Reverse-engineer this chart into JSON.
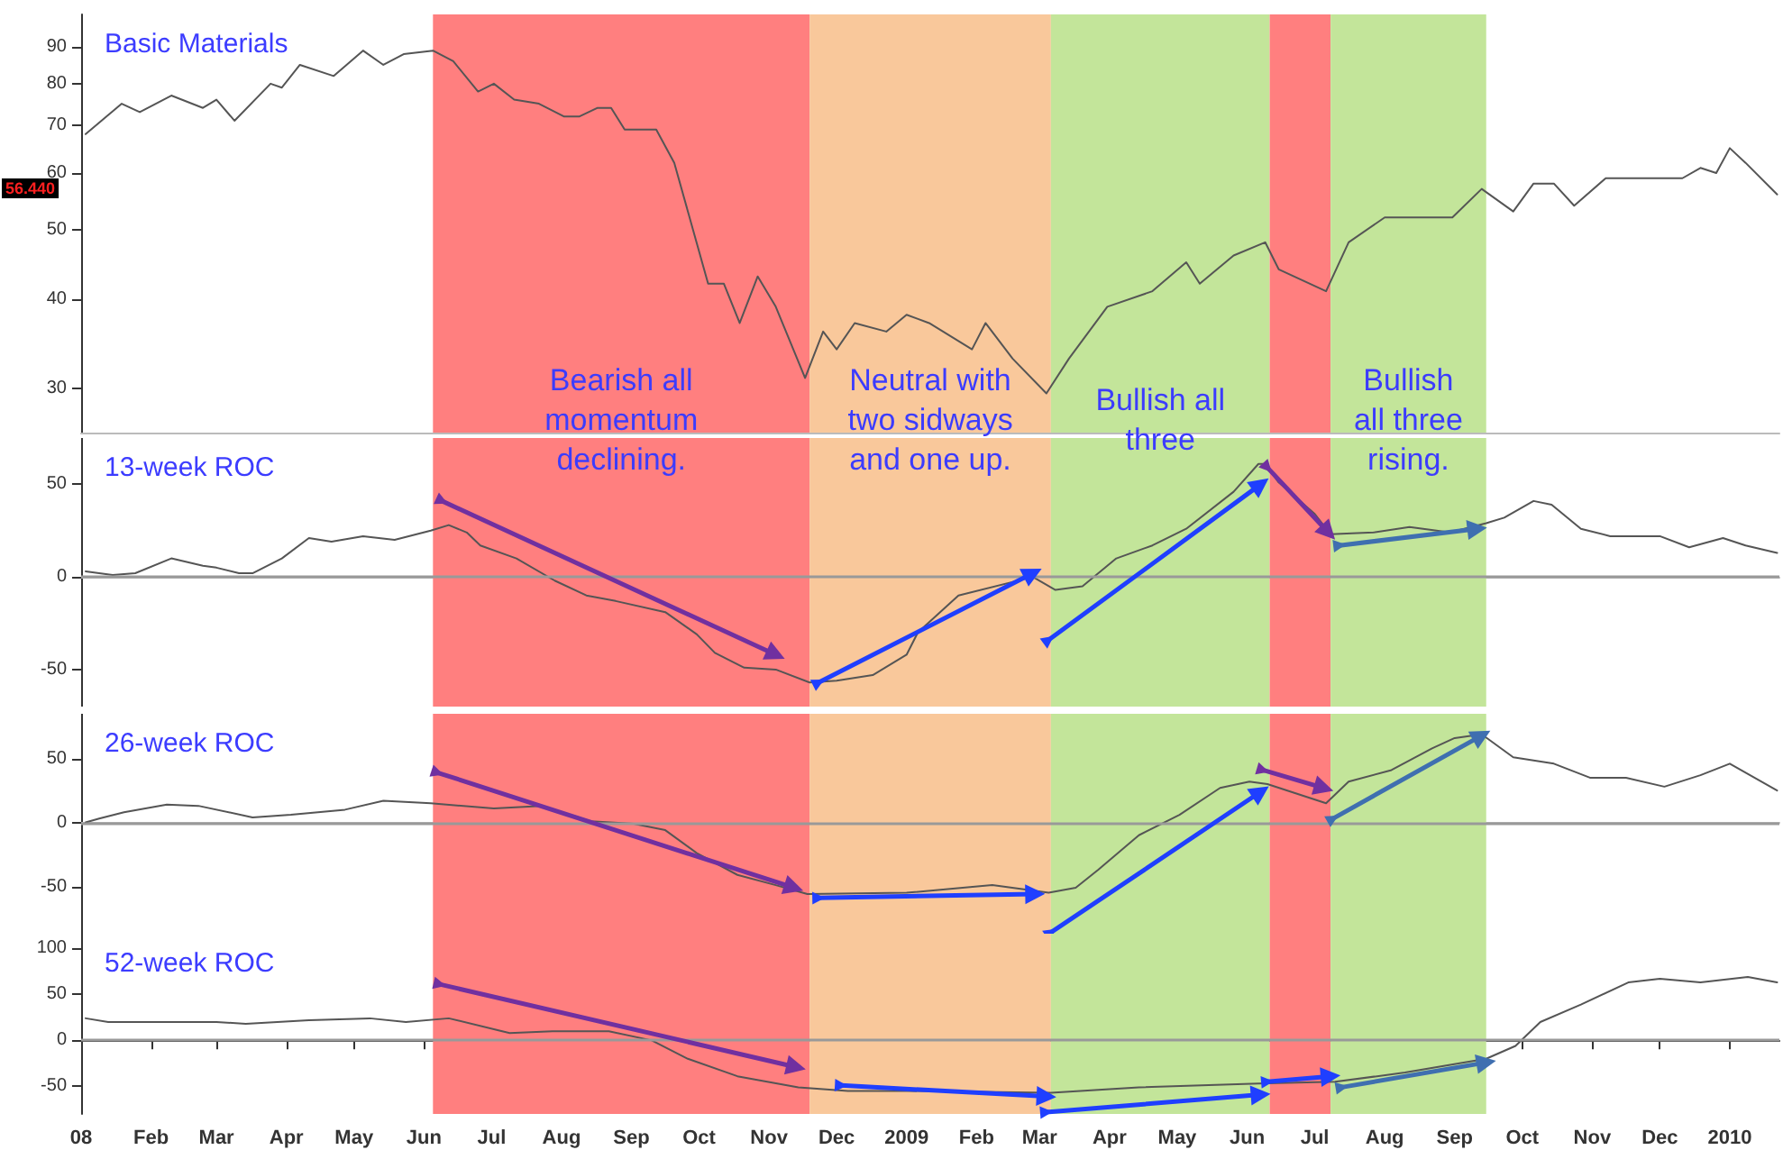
{
  "chart_data": [
    {
      "type": "line",
      "title": "Basic Materials",
      "log": true,
      "marker": "none",
      "tick_labels": "y",
      "xlim": [
        "2008-01-01",
        "2010-01-23"
      ],
      "ylim": [
        26,
        100
      ],
      "yticks": [
        30,
        40,
        50,
        60,
        70,
        80,
        90
      ],
      "annotations": [
        "56.440"
      ],
      "bands": [
        {
          "axis": "x",
          "from": "2008-06-05",
          "to": "2008-11-19",
          "color": "#ff7f7f",
          "label": "Bearish all\nmomentum\ndeclining."
        },
        {
          "axis": "x",
          "from": "2008-11-19",
          "to": "2009-03-06",
          "color": "#f9c89b",
          "label": "Neutral with\ntwo sidways\nand one up."
        },
        {
          "axis": "x",
          "from": "2009-03-06",
          "to": "2009-06-11",
          "color": "#c3e59a",
          "label": "Bullish all\nthree"
        },
        {
          "axis": "x",
          "from": "2009-06-11",
          "to": "2009-07-08",
          "color": "#ff7f7f"
        },
        {
          "axis": "x",
          "from": "2009-07-08",
          "to": "2009-09-15",
          "color": "#c3e59a",
          "label": "Bullish\nall three\nrising."
        }
      ],
      "series": [
        {
          "color": "#555555",
          "x": [
            "2008-01-03",
            "2008-01-19",
            "2008-01-27",
            "2008-02-10",
            "2008-02-24",
            "2008-03-01",
            "2008-03-09",
            "2008-03-25",
            "2008-03-30",
            "2008-04-07",
            "2008-04-22",
            "2008-05-05",
            "2008-05-14",
            "2008-05-23",
            "2008-06-05",
            "2008-06-14",
            "2008-06-25",
            "2008-07-02",
            "2008-07-11",
            "2008-07-22",
            "2008-08-02",
            "2008-08-09",
            "2008-08-17",
            "2008-08-23",
            "2008-08-29",
            "2008-09-12",
            "2008-09-20",
            "2008-10-05",
            "2008-10-12",
            "2008-10-19",
            "2008-10-27",
            "2008-11-04",
            "2008-11-17",
            "2008-11-25",
            "2008-12-01",
            "2008-12-09",
            "2008-12-23",
            "2009-01-01",
            "2009-01-11",
            "2009-01-30",
            "2009-02-05",
            "2009-02-17",
            "2009-03-04",
            "2009-03-14",
            "2009-03-31",
            "2009-04-20",
            "2009-05-05",
            "2009-05-11",
            "2009-05-26",
            "2009-06-09",
            "2009-06-15",
            "2009-07-06",
            "2009-07-16",
            "2009-08-01",
            "2009-08-16",
            "2009-08-31",
            "2009-09-13",
            "2009-09-27",
            "2009-10-06",
            "2009-10-15",
            "2009-10-24",
            "2009-11-07",
            "2009-12-11",
            "2009-12-19",
            "2009-12-26",
            "2010-01-01",
            "2010-01-08",
            "2010-01-22"
          ],
          "values": [
            68,
            75,
            73,
            77,
            74,
            76,
            71,
            80,
            79,
            85,
            82,
            89,
            85,
            88,
            89,
            86,
            78,
            80,
            76,
            75,
            72,
            72,
            74,
            74,
            69,
            69,
            62,
            42,
            42,
            37,
            43,
            39,
            31,
            36,
            34,
            37,
            36,
            38,
            37,
            34,
            37,
            33,
            29.5,
            33,
            39,
            41,
            45,
            42,
            46,
            48,
            44,
            41,
            48,
            52,
            52,
            52,
            57,
            53,
            58,
            58,
            54,
            59,
            59,
            61,
            60,
            65,
            62,
            56
          ]
        }
      ]
    },
    {
      "type": "line",
      "title": "13-week ROC",
      "marker": "none",
      "tick_labels": "y",
      "xlim": [
        "2008-01-01",
        "2010-01-23"
      ],
      "ylim": [
        -70,
        75
      ],
      "yticks": [
        -50,
        0,
        50
      ],
      "ref_lines": [
        {
          "axis": "y",
          "value": 0,
          "color": "#999999"
        }
      ],
      "bands": [
        {
          "axis": "x",
          "from": "2008-06-05",
          "to": "2008-11-19",
          "color": "#ff7f7f"
        },
        {
          "axis": "x",
          "from": "2008-11-19",
          "to": "2009-03-06",
          "color": "#f9c89b"
        },
        {
          "axis": "x",
          "from": "2009-03-06",
          "to": "2009-06-11",
          "color": "#c3e59a"
        },
        {
          "axis": "x",
          "from": "2009-06-11",
          "to": "2009-07-08",
          "color": "#ff7f7f"
        },
        {
          "axis": "x",
          "from": "2009-07-08",
          "to": "2009-09-15",
          "color": "#c3e59a"
        }
      ],
      "series": [
        {
          "color": "#555555",
          "x": [
            "2008-01-03",
            "2008-01-15",
            "2008-01-25",
            "2008-02-10",
            "2008-02-24",
            "2008-03-01",
            "2008-03-11",
            "2008-03-17",
            "2008-03-30",
            "2008-04-11",
            "2008-04-21",
            "2008-05-05",
            "2008-05-19",
            "2008-06-04",
            "2008-06-12",
            "2008-06-20",
            "2008-06-26",
            "2008-07-12",
            "2008-07-29",
            "2008-08-12",
            "2008-08-25",
            "2008-09-16",
            "2008-09-30",
            "2008-10-08",
            "2008-10-21",
            "2008-11-04",
            "2008-11-19",
            "2008-12-01",
            "2008-12-17",
            "2009-01-01",
            "2009-01-06",
            "2009-01-24",
            "2009-02-26",
            "2009-03-08",
            "2009-03-20",
            "2009-04-04",
            "2009-04-20",
            "2009-05-05",
            "2009-05-26",
            "2009-06-06",
            "2009-06-09",
            "2009-06-15",
            "2009-07-01",
            "2009-07-08",
            "2009-07-27",
            "2009-08-12",
            "2009-08-30",
            "2009-09-15",
            "2009-09-23",
            "2009-10-06",
            "2009-10-14",
            "2009-10-27",
            "2009-11-09",
            "2009-12-01",
            "2009-12-14",
            "2009-12-29",
            "2010-01-08",
            "2010-01-22"
          ],
          "values": [
            3,
            1,
            2,
            10,
            6,
            5,
            2,
            2,
            10,
            21,
            19,
            22,
            20,
            25,
            28,
            24,
            17,
            10,
            -2,
            -10,
            -13,
            -19,
            -31,
            -41,
            -49,
            -50,
            -57,
            -56,
            -53,
            -42,
            -30,
            -10,
            0,
            -7,
            -5,
            10,
            17,
            26,
            46,
            61,
            61,
            51,
            34,
            23,
            24,
            27,
            24,
            29,
            32,
            41,
            39,
            26,
            22,
            22,
            16,
            21,
            17,
            13
          ]
        },
        {
          "color": "#7030a0",
          "marker": "triangle",
          "x": [
            "2008-06-09",
            "2008-11-04"
          ],
          "values": [
            41,
            -42
          ]
        },
        {
          "color": "#1f3fff",
          "marker": "triangle",
          "x": [
            "2008-11-23",
            "2009-02-26"
          ],
          "values": [
            -57,
            2
          ]
        },
        {
          "color": "#1f3fff",
          "marker": "triangle",
          "x": [
            "2009-03-05",
            "2009-06-07"
          ],
          "values": [
            -34,
            50
          ]
        },
        {
          "color": "#7030a0",
          "marker": "triangle",
          "x": [
            "2009-06-10",
            "2009-07-07"
          ],
          "values": [
            59,
            24
          ]
        },
        {
          "color": "#3f6fb0",
          "marker": "triangle",
          "x": [
            "2009-07-12",
            "2009-09-11"
          ],
          "values": [
            17,
            26
          ]
        }
      ]
    },
    {
      "type": "line",
      "title": "26-week ROC",
      "marker": "none",
      "tick_labels": "y",
      "xlim": [
        "2008-01-01",
        "2010-01-23"
      ],
      "ylim": [
        -87,
        85
      ],
      "yticks": [
        -50,
        0,
        50
      ],
      "ref_lines": [
        {
          "axis": "y",
          "value": 0,
          "color": "#999999"
        }
      ],
      "bands": [
        {
          "axis": "x",
          "from": "2008-06-05",
          "to": "2008-11-19",
          "color": "#ff7f7f"
        },
        {
          "axis": "x",
          "from": "2008-11-19",
          "to": "2009-03-06",
          "color": "#f9c89b"
        },
        {
          "axis": "x",
          "from": "2009-03-06",
          "to": "2009-06-11",
          "color": "#c3e59a"
        },
        {
          "axis": "x",
          "from": "2009-06-11",
          "to": "2009-07-08",
          "color": "#ff7f7f"
        },
        {
          "axis": "x",
          "from": "2009-07-08",
          "to": "2009-09-15",
          "color": "#c3e59a"
        }
      ],
      "series": [
        {
          "color": "#555555",
          "x": [
            "2008-01-03",
            "2008-01-09",
            "2008-01-20",
            "2008-02-08",
            "2008-02-22",
            "2008-03-17",
            "2008-04-03",
            "2008-04-27",
            "2008-05-14",
            "2008-06-04",
            "2008-07-02",
            "2008-07-23",
            "2008-08-14",
            "2008-09-02",
            "2008-09-16",
            "2008-09-30",
            "2008-10-18",
            "2008-11-04",
            "2008-11-18",
            "2009-01-01",
            "2009-02-08",
            "2009-03-05",
            "2009-03-17",
            "2009-03-27",
            "2009-04-14",
            "2009-05-02",
            "2009-05-20",
            "2009-06-02",
            "2009-06-10",
            "2009-07-06",
            "2009-07-16",
            "2009-08-04",
            "2009-08-22",
            "2009-09-01",
            "2009-09-13",
            "2009-09-27",
            "2009-10-15",
            "2009-10-31",
            "2009-11-16",
            "2009-12-03",
            "2009-12-19",
            "2010-01-01",
            "2010-01-22"
          ],
          "values": [
            0,
            3,
            8,
            14,
            13,
            4,
            6,
            10,
            17,
            15,
            11,
            13,
            1,
            -1,
            -6,
            -24,
            -41,
            -49,
            -56,
            -55,
            -49,
            -55,
            -51,
            -37,
            -10,
            6,
            27,
            32,
            30,
            15,
            32,
            41,
            58,
            66,
            69,
            51,
            46,
            35,
            35,
            28,
            37,
            46,
            25
          ]
        },
        {
          "color": "#7030a0",
          "marker": "triangle",
          "x": [
            "2008-06-07",
            "2008-11-12"
          ],
          "values": [
            39,
            -51
          ]
        },
        {
          "color": "#1f3fff",
          "marker": "triangle",
          "x": [
            "2008-11-23",
            "2009-02-27"
          ],
          "values": [
            -59,
            -56
          ]
        },
        {
          "color": "#1f3fff",
          "marker": "triangle",
          "x": [
            "2009-03-06",
            "2009-06-07"
          ],
          "values": [
            -86,
            24
          ]
        },
        {
          "color": "#7030a0",
          "marker": "triangle",
          "x": [
            "2009-06-08",
            "2009-07-05"
          ],
          "values": [
            41,
            27
          ]
        },
        {
          "color": "#3f6fb0",
          "marker": "triangle",
          "x": [
            "2009-07-09",
            "2009-09-13"
          ],
          "values": [
            3,
            68
          ]
        }
      ]
    },
    {
      "type": "line",
      "title": "52-week ROC",
      "marker": "none",
      "xlim": [
        "2008-01-01",
        "2010-01-23"
      ],
      "ylim": [
        -80,
        116
      ],
      "yticks": [
        -50,
        0,
        50,
        100
      ],
      "xticks": [
        {
          "value": "2008-01-01",
          "label": "08"
        },
        {
          "value": "2008-02-01",
          "label": "Feb"
        },
        {
          "value": "2008-03-01",
          "label": "Mar"
        },
        {
          "value": "2008-04-01",
          "label": "Apr"
        },
        {
          "value": "2008-05-01",
          "label": "May"
        },
        {
          "value": "2008-06-01",
          "label": "Jun"
        },
        {
          "value": "2008-07-01",
          "label": "Jul"
        },
        {
          "value": "2008-08-01",
          "label": "Aug"
        },
        {
          "value": "2008-09-01",
          "label": "Sep"
        },
        {
          "value": "2008-10-01",
          "label": "Oct"
        },
        {
          "value": "2008-11-01",
          "label": "Nov"
        },
        {
          "value": "2008-12-01",
          "label": "Dec"
        },
        {
          "value": "2009-01-01",
          "label": "2009"
        },
        {
          "value": "2009-02-01",
          "label": "Feb"
        },
        {
          "value": "2009-03-01",
          "label": "Mar"
        },
        {
          "value": "2009-04-01",
          "label": "Apr"
        },
        {
          "value": "2009-05-01",
          "label": "May"
        },
        {
          "value": "2009-06-01",
          "label": "Jun"
        },
        {
          "value": "2009-07-01",
          "label": "Jul"
        },
        {
          "value": "2009-08-01",
          "label": "Aug"
        },
        {
          "value": "2009-09-01",
          "label": "Sep"
        },
        {
          "value": "2009-10-01",
          "label": "Oct"
        },
        {
          "value": "2009-11-01",
          "label": "Nov"
        },
        {
          "value": "2009-12-01",
          "label": "Dec"
        },
        {
          "value": "2010-01-01",
          "label": "2010"
        }
      ],
      "ref_lines": [
        {
          "axis": "y",
          "value": 0,
          "color": "#999999"
        }
      ],
      "bands": [
        {
          "axis": "x",
          "from": "2008-06-05",
          "to": "2008-11-19",
          "color": "#ff7f7f"
        },
        {
          "axis": "x",
          "from": "2008-11-19",
          "to": "2009-03-06",
          "color": "#f9c89b"
        },
        {
          "axis": "x",
          "from": "2009-03-06",
          "to": "2009-06-11",
          "color": "#c3e59a"
        },
        {
          "axis": "x",
          "from": "2009-06-11",
          "to": "2009-07-08",
          "color": "#ff7f7f"
        },
        {
          "axis": "x",
          "from": "2009-07-08",
          "to": "2009-09-15",
          "color": "#c3e59a"
        }
      ],
      "series": [
        {
          "color": "#555555",
          "x": [
            "2008-01-03",
            "2008-01-13",
            "2008-02-08",
            "2008-03-01",
            "2008-03-14",
            "2008-04-11",
            "2008-05-08",
            "2008-05-24",
            "2008-06-12",
            "2008-07-09",
            "2008-07-28",
            "2008-08-22",
            "2008-09-10",
            "2008-09-26",
            "2008-10-18",
            "2008-11-14",
            "2008-12-06",
            "2009-01-01",
            "2009-03-06",
            "2009-04-14",
            "2009-06-06",
            "2009-07-10",
            "2009-08-10",
            "2009-09-15",
            "2009-09-28",
            "2009-10-09",
            "2009-10-27",
            "2009-11-17",
            "2009-12-01",
            "2009-12-19",
            "2010-01-09",
            "2010-01-22"
          ],
          "values": [
            24,
            20,
            20,
            20,
            18,
            22,
            24,
            20,
            24,
            8,
            10,
            10,
            0,
            -20,
            -39,
            -51,
            -55,
            -55,
            -57,
            -51,
            -47,
            -45,
            -35,
            -20,
            -6,
            20,
            39,
            63,
            67,
            63,
            69,
            63
          ]
        },
        {
          "color": "#7030a0",
          "marker": "triangle",
          "x": [
            "2008-06-08",
            "2008-11-13"
          ],
          "values": [
            61,
            -29
          ]
        },
        {
          "color": "#1f3fff",
          "marker": "triangle",
          "x": [
            "2008-12-03",
            "2009-03-04"
          ],
          "values": [
            -49,
            -61
          ]
        },
        {
          "color": "#1f3fff",
          "marker": "triangle",
          "x": [
            "2009-03-04",
            "2009-06-07"
          ],
          "values": [
            -78,
            -59
          ]
        },
        {
          "color": "#1f3fff",
          "marker": "triangle",
          "x": [
            "2009-06-10",
            "2009-07-08"
          ],
          "values": [
            -45,
            -39
          ]
        },
        {
          "color": "#3f6fb0",
          "marker": "triangle",
          "x": [
            "2009-07-13",
            "2009-09-15"
          ],
          "values": [
            -51,
            -24
          ]
        }
      ]
    }
  ]
}
